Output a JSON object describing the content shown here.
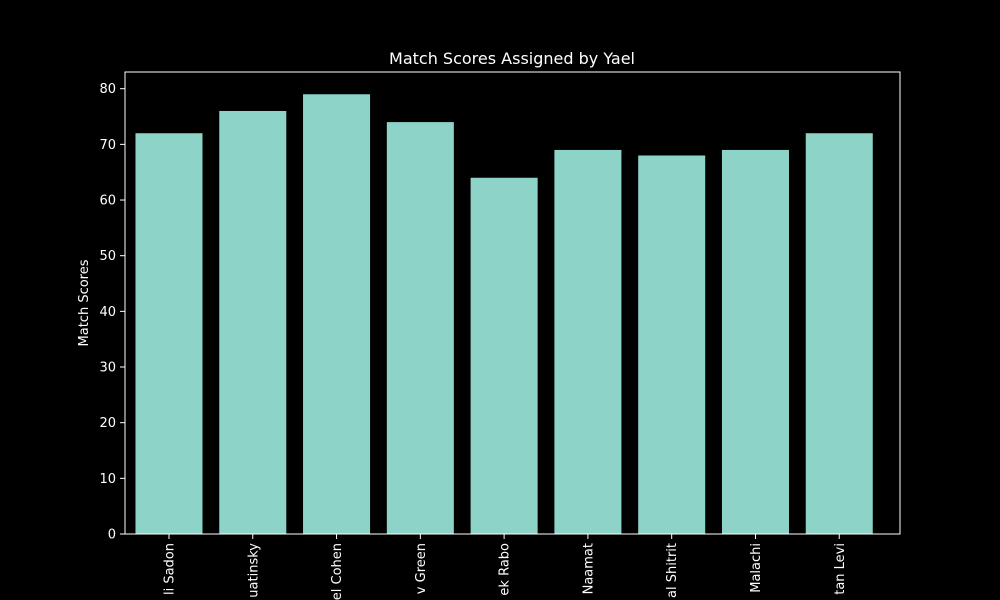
{
  "chart_data": {
    "type": "bar",
    "title": "Match Scores Assigned by Yael",
    "xlabel": "",
    "ylabel": "Match Scores",
    "categories": [
      "li Sadon",
      "uatinsky",
      "el Cohen",
      "v Green",
      "ek Rabo",
      "Naamat",
      "al Shitrit",
      "Malachi",
      "tan Levi"
    ],
    "values": [
      72,
      76,
      79,
      74,
      64,
      69,
      68,
      69,
      72
    ],
    "ylim": [
      0,
      83
    ],
    "yticks": [
      0,
      10,
      20,
      30,
      40,
      50,
      60,
      70,
      80
    ],
    "grid": false,
    "legend": "none",
    "colors": {
      "background": "#000000",
      "bar": "#8dd3c7",
      "axis": "#ffffff",
      "text": "#ffffff"
    }
  }
}
